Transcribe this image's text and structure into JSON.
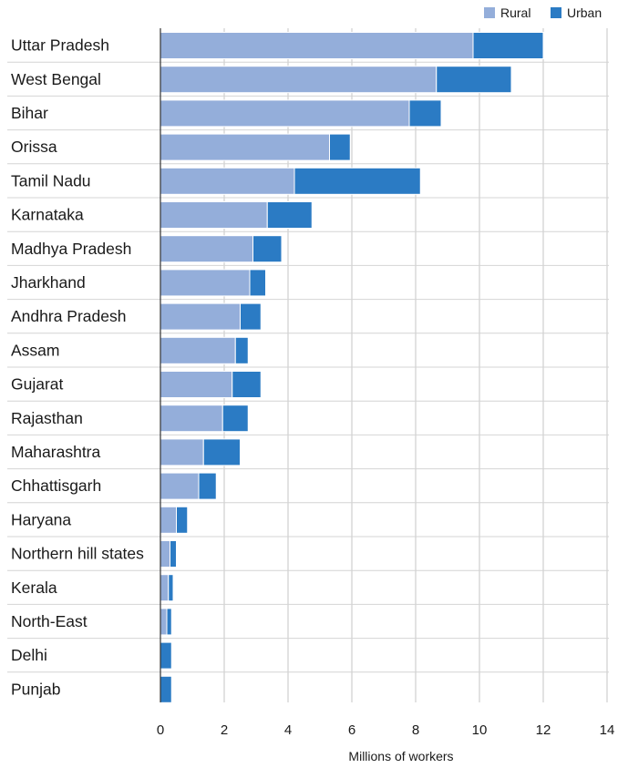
{
  "chart_data": {
    "type": "bar",
    "orientation": "horizontal",
    "stacked": true,
    "title": "",
    "xlabel": "Millions of workers",
    "ylabel": "",
    "xlim": [
      0,
      14
    ],
    "x_ticks": [
      0,
      2,
      4,
      6,
      8,
      10,
      12,
      14
    ],
    "grid": "vertical",
    "legend_position": "top-right",
    "categories": [
      "Uttar Pradesh",
      "West Bengal",
      "Bihar",
      "Orissa",
      "Tamil Nadu",
      "Karnataka",
      "Madhya Pradesh",
      "Jharkhand",
      "Andhra Pradesh",
      "Assam",
      "Gujarat",
      "Rajasthan",
      "Maharashtra",
      "Chhattisgarh",
      "Haryana",
      "Northern hill states",
      "Kerala",
      "North-East",
      "Delhi",
      "Punjab"
    ],
    "series": [
      {
        "name": "Rural",
        "color": "#94aeda",
        "values": [
          9.8,
          8.65,
          7.8,
          5.3,
          4.2,
          3.35,
          2.9,
          2.8,
          2.5,
          2.35,
          2.25,
          1.95,
          1.35,
          1.2,
          0.5,
          0.3,
          0.25,
          0.2,
          0.0,
          0.0
        ]
      },
      {
        "name": "Urban",
        "color": "#2b7bc4",
        "values": [
          2.2,
          2.35,
          1.0,
          0.65,
          3.95,
          1.4,
          0.9,
          0.5,
          0.65,
          0.4,
          0.9,
          0.8,
          1.15,
          0.55,
          0.35,
          0.2,
          0.15,
          0.15,
          0.35,
          0.35
        ]
      }
    ]
  }
}
